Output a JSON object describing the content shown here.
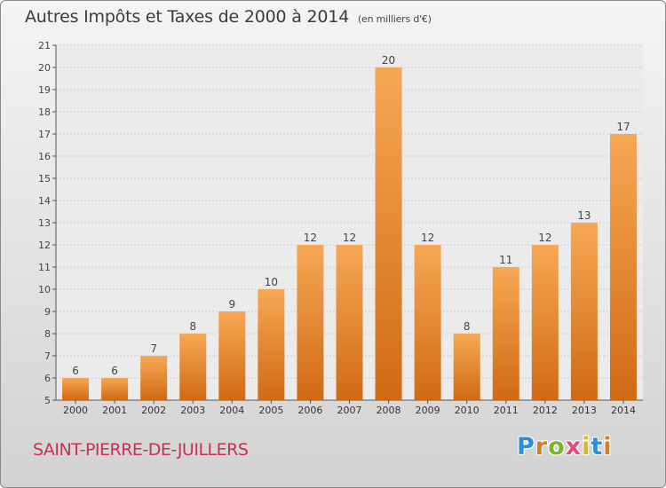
{
  "title": "Autres Impôts et Taxes de 2000 à 2014",
  "subtitle": "(en milliers d'€)",
  "commune": "SAINT-PIERRE-DE-JUILLERS",
  "logo": {
    "text": "Proxiti",
    "letter_colors": [
      "#2f8fd0",
      "#e07a1e",
      "#7ab52c",
      "#e04a8a",
      "#e0b51e",
      "#2f8fd0",
      "#e07a1e"
    ]
  },
  "colors": {
    "bar_top": "#f6a855",
    "bar_bottom": "#d06a14",
    "title": "#3c3c3c",
    "commune": "#c4334f"
  },
  "chart_data": {
    "type": "bar",
    "categories": [
      "2000",
      "2001",
      "2002",
      "2003",
      "2004",
      "2005",
      "2006",
      "2007",
      "2008",
      "2009",
      "2010",
      "2011",
      "2012",
      "2013",
      "2014"
    ],
    "values": [
      6,
      6,
      7,
      8,
      9,
      10,
      12,
      12,
      20,
      12,
      8,
      11,
      12,
      13,
      17
    ],
    "ylim": [
      5,
      21
    ],
    "yticks": [
      5,
      6,
      7,
      8,
      9,
      10,
      11,
      12,
      13,
      14,
      15,
      16,
      17,
      18,
      19,
      20,
      21
    ],
    "grid": true,
    "xlabel": "",
    "ylabel": ""
  }
}
